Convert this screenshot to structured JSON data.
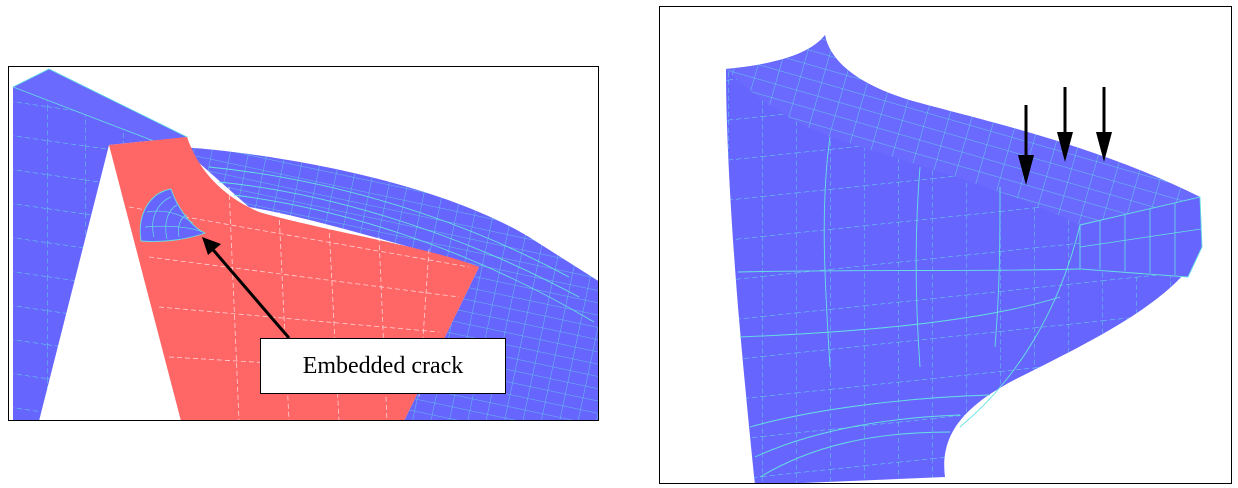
{
  "figure": {
    "left_panel": {
      "annotation": "Embedded crack"
    },
    "right_panel": {
      "arrow_count": 3
    },
    "colors": {
      "mesh_blue": "#6666ff",
      "section_red": "#ff6666",
      "mesh_line": "#66e0e0",
      "arrow": "#000000",
      "frame": "#000000"
    },
    "icons": [
      "arrow-pointer",
      "load-arrow"
    ]
  }
}
